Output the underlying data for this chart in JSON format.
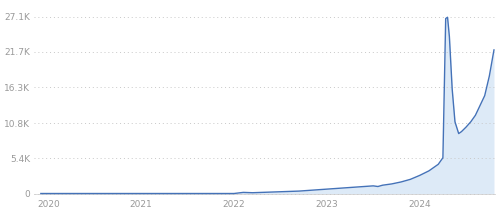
{
  "yticks": [
    0,
    5400,
    10800,
    16300,
    21700,
    27100
  ],
  "ytick_labels": [
    "0",
    "5.4K",
    "10.8K",
    "16.3K",
    "21.7K",
    "27.1K"
  ],
  "xtick_labels": [
    "2020",
    "2021",
    "2022",
    "2023",
    "2024"
  ],
  "xtick_positions": [
    2020,
    2021,
    2022,
    2023,
    2024
  ],
  "ymax": 29000,
  "xmin": 2019.85,
  "xmax": 2024.82,
  "line_color": "#4472b8",
  "fill_color": "#ddeaf7",
  "background_color": "#ffffff",
  "grid_color": "#c8c8c8",
  "x": [
    2019.92,
    2020.0,
    2020.1,
    2020.3,
    2020.5,
    2020.7,
    2020.9,
    2021.0,
    2021.2,
    2021.4,
    2021.6,
    2021.8,
    2022.0,
    2022.1,
    2022.2,
    2022.3,
    2022.4,
    2022.5,
    2022.6,
    2022.7,
    2022.8,
    2022.9,
    2023.0,
    2023.1,
    2023.2,
    2023.3,
    2023.4,
    2023.5,
    2023.55,
    2023.6,
    2023.7,
    2023.8,
    2023.9,
    2024.0,
    2024.1,
    2024.2,
    2024.25,
    2024.28,
    2024.3,
    2024.32,
    2024.35,
    2024.38,
    2024.42,
    2024.45,
    2024.5,
    2024.55,
    2024.6,
    2024.65,
    2024.7,
    2024.75,
    2024.8
  ],
  "y": [
    30,
    30,
    30,
    30,
    30,
    30,
    30,
    30,
    30,
    30,
    30,
    30,
    30,
    200,
    150,
    200,
    250,
    300,
    350,
    400,
    500,
    600,
    700,
    800,
    900,
    1000,
    1100,
    1200,
    1100,
    1300,
    1500,
    1800,
    2200,
    2800,
    3500,
    4500,
    5500,
    26800,
    27000,
    24000,
    16000,
    11000,
    9200,
    9500,
    10200,
    11000,
    12000,
    13500,
    15000,
    18000,
    22000
  ]
}
